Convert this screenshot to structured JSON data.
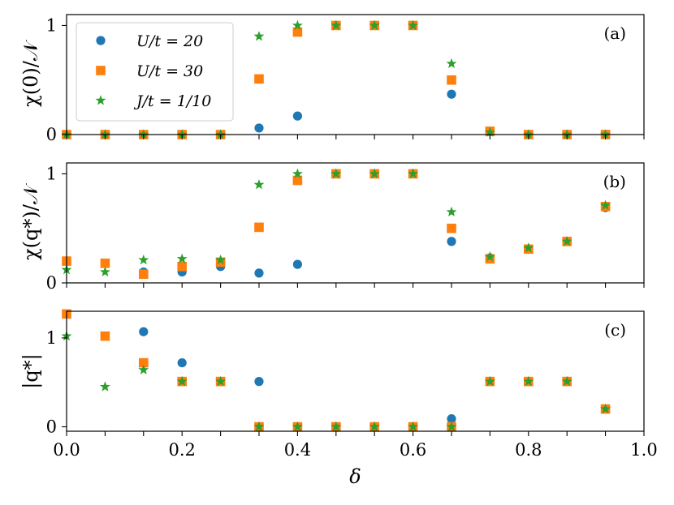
{
  "chart_data": [
    {
      "type": "scatter",
      "panel_label": "(a)",
      "ylabel": "χ(0)/𝒩",
      "xlim": [
        0.0,
        1.0
      ],
      "ylim": [
        0,
        1.1
      ],
      "yticks": [
        0,
        1
      ],
      "ytick_labels": [
        "0",
        "1"
      ],
      "legend": {
        "position": "top-left"
      },
      "series": [
        {
          "name": "U/t = 20",
          "color": "#1f77b4",
          "marker": "circle",
          "x": [
            0.0,
            0.0667,
            0.1333,
            0.2,
            0.2667,
            0.3333,
            0.4,
            0.4667,
            0.5333,
            0.6,
            0.6667,
            0.7333,
            0.8,
            0.8667,
            0.9333
          ],
          "y": [
            0.0,
            0.0,
            0.0,
            0.0,
            0.0,
            0.06,
            0.17,
            1.0,
            1.0,
            1.0,
            0.37,
            0.03,
            0.0,
            0.0,
            0.0
          ]
        },
        {
          "name": "U/t = 30",
          "color": "#ff7f0e",
          "marker": "square",
          "x": [
            0.0,
            0.0667,
            0.1333,
            0.2,
            0.2667,
            0.3333,
            0.4,
            0.4667,
            0.5333,
            0.6,
            0.6667,
            0.7333,
            0.8,
            0.8667,
            0.9333
          ],
          "y": [
            0.0,
            0.0,
            0.0,
            0.0,
            0.0,
            0.51,
            0.94,
            1.0,
            1.0,
            1.0,
            0.5,
            0.03,
            0.0,
            0.0,
            0.0
          ]
        },
        {
          "name": "J/t = 1/10",
          "color": "#2ca02c",
          "marker": "star",
          "x": [
            0.0,
            0.0667,
            0.1333,
            0.2,
            0.2667,
            0.3333,
            0.4,
            0.4667,
            0.5333,
            0.6,
            0.6667,
            0.7333,
            0.8,
            0.8667,
            0.9333
          ],
          "y": [
            0.0,
            0.0,
            0.0,
            0.0,
            0.0,
            0.9,
            1.0,
            1.0,
            1.0,
            1.0,
            0.65,
            0.02,
            0.0,
            0.0,
            0.0
          ]
        }
      ]
    },
    {
      "type": "scatter",
      "panel_label": "(b)",
      "ylabel": "χ(q*)/𝒩",
      "xlim": [
        0.0,
        1.0
      ],
      "ylim": [
        0,
        1.1
      ],
      "yticks": [
        0,
        1
      ],
      "ytick_labels": [
        "0",
        "1"
      ],
      "series": [
        {
          "name": "U/t = 20",
          "color": "#1f77b4",
          "marker": "circle",
          "x": [
            0.0,
            0.0667,
            0.1333,
            0.2,
            0.2667,
            0.3333,
            0.4,
            0.4667,
            0.5333,
            0.6,
            0.6667,
            0.7333,
            0.8,
            0.8667,
            0.9333
          ],
          "y": [
            0.2,
            0.18,
            0.1,
            0.1,
            0.15,
            0.09,
            0.17,
            1.0,
            1.0,
            1.0,
            0.38,
            0.23,
            0.31,
            0.38,
            0.69
          ]
        },
        {
          "name": "U/t = 30",
          "color": "#ff7f0e",
          "marker": "square",
          "x": [
            0.0,
            0.0667,
            0.1333,
            0.2,
            0.2667,
            0.3333,
            0.4,
            0.4667,
            0.5333,
            0.6,
            0.6667,
            0.7333,
            0.8,
            0.8667,
            0.9333
          ],
          "y": [
            0.2,
            0.18,
            0.08,
            0.15,
            0.19,
            0.51,
            0.94,
            1.0,
            1.0,
            1.0,
            0.5,
            0.22,
            0.31,
            0.38,
            0.7
          ]
        },
        {
          "name": "J/t = 1/10",
          "color": "#2ca02c",
          "marker": "star",
          "x": [
            0.0,
            0.0667,
            0.1333,
            0.2,
            0.2667,
            0.3333,
            0.4,
            0.4667,
            0.5333,
            0.6,
            0.6667,
            0.7333,
            0.8,
            0.8667,
            0.9333
          ],
          "y": [
            0.12,
            0.1,
            0.21,
            0.22,
            0.21,
            0.9,
            1.0,
            1.0,
            1.0,
            1.0,
            0.65,
            0.24,
            0.32,
            0.38,
            0.71
          ]
        }
      ]
    },
    {
      "type": "scatter",
      "panel_label": "(c)",
      "ylabel": "|q*|",
      "xlabel": "δ",
      "xlim": [
        0.0,
        1.0
      ],
      "ylim": [
        -0.05,
        1.3
      ],
      "yticks": [
        0,
        1
      ],
      "ytick_labels": [
        "0",
        "1"
      ],
      "xticks": [
        0.0,
        0.2,
        0.4,
        0.6,
        0.8,
        1.0
      ],
      "xtick_labels": [
        "0.0",
        "0.2",
        "0.4",
        "0.6",
        "0.8",
        "1.0"
      ],
      "series": [
        {
          "name": "U/t = 20",
          "color": "#1f77b4",
          "marker": "circle",
          "x": [
            0.0,
            0.0667,
            0.1333,
            0.2,
            0.2667,
            0.3333,
            0.4,
            0.4667,
            0.5333,
            0.6,
            0.6667,
            0.7333,
            0.8,
            0.8667,
            0.9333
          ],
          "y": [
            1.27,
            1.02,
            1.07,
            0.72,
            0.51,
            0.51,
            0.0,
            0.0,
            0.0,
            0.0,
            0.09,
            0.51,
            0.51,
            0.51,
            0.2
          ]
        },
        {
          "name": "U/t = 30",
          "color": "#ff7f0e",
          "marker": "square",
          "x": [
            0.0,
            0.0667,
            0.1333,
            0.2,
            0.2667,
            0.3333,
            0.4,
            0.4667,
            0.5333,
            0.6,
            0.6667,
            0.7333,
            0.8,
            0.8667,
            0.9333
          ],
          "y": [
            1.27,
            1.02,
            0.72,
            0.51,
            0.51,
            0.0,
            0.0,
            0.0,
            0.0,
            0.0,
            0.0,
            0.51,
            0.51,
            0.51,
            0.2
          ]
        },
        {
          "name": "J/t = 1/10",
          "color": "#2ca02c",
          "marker": "star",
          "x": [
            0.0,
            0.0667,
            0.1333,
            0.2,
            0.2667,
            0.3333,
            0.4,
            0.4667,
            0.5333,
            0.6,
            0.6667,
            0.7333,
            0.8,
            0.8667,
            0.9333
          ],
          "y": [
            1.02,
            0.45,
            0.64,
            0.51,
            0.51,
            0.0,
            0.0,
            0.0,
            0.0,
            0.0,
            0.0,
            0.51,
            0.51,
            0.51,
            0.2
          ]
        }
      ]
    }
  ]
}
